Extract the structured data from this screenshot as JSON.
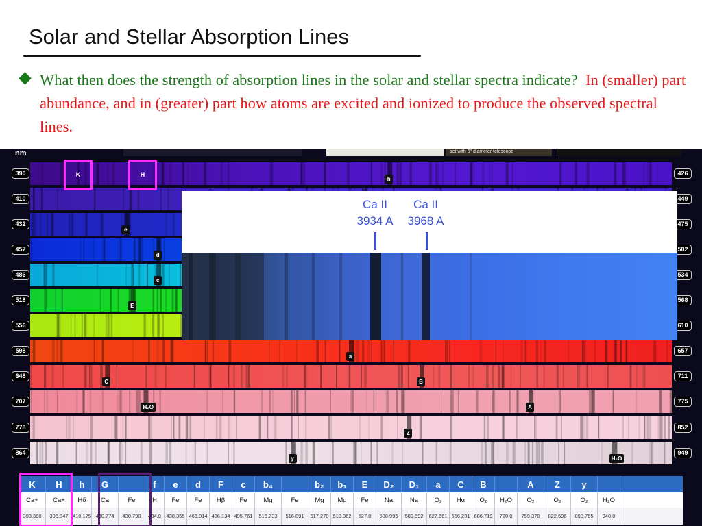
{
  "slide": {
    "title": "Solar and Stellar Absorption Lines",
    "bullet_question": "What then does the strength of absorption lines in the solar and stellar spectra indicate?",
    "bullet_answer": "In (smaller) part abundance, and in (greater) part how atoms are excited and ionized to produce the observed spectral lines."
  },
  "figure": {
    "unit_label": "nm",
    "caption_text": "set with 6\" diameter telescope",
    "bands": [
      {
        "start": "390",
        "end": "426",
        "colors": [
          "#3d0a8a",
          "#4a12b8",
          "#5318d0",
          "#4c12c8"
        ],
        "tags": [
          {
            "text": "h",
            "pos": 0.56
          }
        ]
      },
      {
        "start": "410",
        "end": "449",
        "colors": [
          "#3a1aa8",
          "#3f22c4",
          "#4426d0",
          "#4020c8"
        ],
        "tags": []
      },
      {
        "start": "432",
        "end": "475",
        "colors": [
          "#2020b8",
          "#2230d0",
          "#2638e0",
          "#2234d8"
        ],
        "tags": [
          {
            "text": "e",
            "pos": 0.15
          }
        ]
      },
      {
        "start": "457",
        "end": "502",
        "colors": [
          "#0a2ad8",
          "#0a48e8",
          "#0a5aee",
          "#0a4ae0"
        ],
        "tags": [
          {
            "text": "d",
            "pos": 0.2
          }
        ]
      },
      {
        "start": "486",
        "end": "534",
        "colors": [
          "#08a8d8",
          "#08c8e0",
          "#08d8d0",
          "#08d8b8"
        ],
        "tags": [
          {
            "text": "c",
            "pos": 0.2
          }
        ]
      },
      {
        "start": "518",
        "end": "568",
        "colors": [
          "#10d030",
          "#20e020",
          "#30e020",
          "#40e020"
        ],
        "tags": [
          {
            "text": "E",
            "pos": 0.16
          }
        ]
      },
      {
        "start": "556",
        "end": "610",
        "colors": [
          "#a8e810",
          "#c0f010",
          "#d8f010",
          "#e8f010"
        ],
        "tags": []
      },
      {
        "start": "598",
        "end": "657",
        "colors": [
          "#f04810",
          "#f83418",
          "#f82820",
          "#f02020"
        ],
        "tags": [
          {
            "text": "a",
            "pos": 0.5
          }
        ]
      },
      {
        "start": "648",
        "end": "711",
        "colors": [
          "#f04848",
          "#f05050",
          "#f05858",
          "#ee5050"
        ],
        "tags": [
          {
            "text": "C",
            "pos": 0.12
          },
          {
            "text": "B",
            "pos": 0.61
          }
        ]
      },
      {
        "start": "707",
        "end": "775",
        "colors": [
          "#f08898",
          "#f098a8",
          "#f0a0b0",
          "#f0a0b0"
        ],
        "tags": [
          {
            "text": "H₂O",
            "pos": 0.18
          },
          {
            "text": "A",
            "pos": 0.78
          }
        ]
      },
      {
        "start": "778",
        "end": "852",
        "colors": [
          "#f4c4d0",
          "#f6ccd8",
          "#f6d0dc",
          "#f6d0dc"
        ],
        "tags": [
          {
            "text": "Z",
            "pos": 0.59
          }
        ]
      },
      {
        "start": "864",
        "end": "949",
        "colors": [
          "#ecdce4",
          "#f0e0e8",
          "#e8d8e0",
          "#e0d0d8"
        ],
        "tags": [
          {
            "text": "y",
            "pos": 0.41
          },
          {
            "text": "H₂O",
            "pos": 0.91
          }
        ]
      }
    ],
    "mag_boxes": [
      {
        "text": "K"
      },
      {
        "text": "H"
      }
    ],
    "inset": {
      "lines": [
        {
          "name": "Ca II",
          "wavelength": "3934 A"
        },
        {
          "name": "Ca II",
          "wavelength": "3968 A"
        }
      ]
    }
  },
  "table": {
    "columns": [
      {
        "symbol": "K",
        "element": "Ca+",
        "wavelength": "393.368"
      },
      {
        "symbol": "H",
        "element": "Ca+",
        "wavelength": "396.847"
      },
      {
        "symbol": "h",
        "element": "Hδ",
        "wavelength": "410.175"
      },
      {
        "symbol": "G",
        "element": "Ca",
        "wavelength": "430.774"
      },
      {
        "symbol": "",
        "element": "Fe",
        "wavelength": "430.790"
      },
      {
        "symbol": "f",
        "element": "H",
        "wavelength": "434.0"
      },
      {
        "symbol": "e",
        "element": "Fe",
        "wavelength": "438.355"
      },
      {
        "symbol": "d",
        "element": "Fe",
        "wavelength": "466.814"
      },
      {
        "symbol": "F",
        "element": "Hβ",
        "wavelength": "486.134"
      },
      {
        "symbol": "c",
        "element": "Fe",
        "wavelength": "495.761"
      },
      {
        "symbol": "b₄",
        "element": "Mg",
        "wavelength": "516.733"
      },
      {
        "symbol": "",
        "element": "Fe",
        "wavelength": "516.891"
      },
      {
        "symbol": "b₂",
        "element": "Mg",
        "wavelength": "517.270"
      },
      {
        "symbol": "b₁",
        "element": "Mg",
        "wavelength": "518.362"
      },
      {
        "symbol": "E",
        "element": "Fe",
        "wavelength": "527.0"
      },
      {
        "symbol": "D₂",
        "element": "Na",
        "wavelength": "588.995"
      },
      {
        "symbol": "D₁",
        "element": "Na",
        "wavelength": "589.592"
      },
      {
        "symbol": "a",
        "element": "O₂",
        "wavelength": "627.661"
      },
      {
        "symbol": "C",
        "element": "Hα",
        "wavelength": "656.281"
      },
      {
        "symbol": "B",
        "element": "O₂",
        "wavelength": "686.719"
      },
      {
        "symbol": "",
        "element": "H₂O",
        "wavelength": "720.0"
      },
      {
        "symbol": "A",
        "element": "O₂",
        "wavelength": "759.370"
      },
      {
        "symbol": "Z",
        "element": "O₂",
        "wavelength": "822.696"
      },
      {
        "symbol": "y",
        "element": "O₂",
        "wavelength": "898.765"
      },
      {
        "symbol": "",
        "element": "H₂O",
        "wavelength": "940.0"
      }
    ]
  }
}
